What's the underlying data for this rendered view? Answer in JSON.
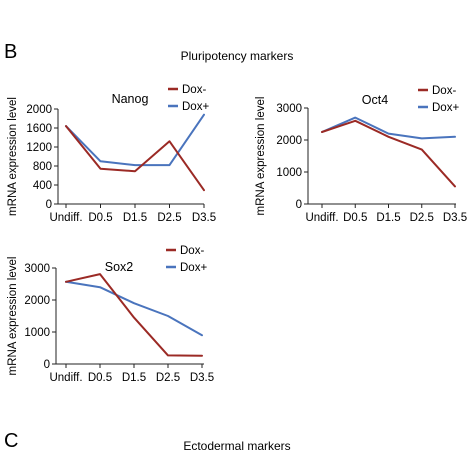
{
  "panel_b": {
    "letter": "B",
    "title": "Pluripotency markers"
  },
  "panel_c": {
    "letter": "C",
    "title": "Ectodermal markers"
  },
  "colors": {
    "dox_minus": "#9b2a25",
    "dox_plus": "#4a74bd",
    "axis": "#222222"
  },
  "chart_data": [
    {
      "type": "line",
      "title": "Nanog",
      "categories": [
        "Undiff.",
        "D0.5",
        "D1.5",
        "D2.5",
        "D3.5"
      ],
      "series": [
        {
          "name": "Dox-",
          "values": [
            1640,
            740,
            690,
            1320,
            290
          ]
        },
        {
          "name": "Dox+",
          "values": [
            1640,
            900,
            820,
            820,
            1880
          ]
        }
      ],
      "xlabel": "",
      "ylabel": "mRNA expression level",
      "ylim": [
        0,
        2000
      ],
      "yticks": [
        0,
        400,
        800,
        1200,
        1600,
        2000
      ],
      "legend": "top-right",
      "grid": false
    },
    {
      "type": "line",
      "title": "Oct4",
      "categories": [
        "Undiff.",
        "D0.5",
        "D1.5",
        "D2.5",
        "D3.5"
      ],
      "series": [
        {
          "name": "Dox-",
          "values": [
            2250,
            2600,
            2100,
            1700,
            550
          ]
        },
        {
          "name": "Dox+",
          "values": [
            2250,
            2700,
            2200,
            2050,
            2100
          ]
        }
      ],
      "xlabel": "",
      "ylabel": "mRNA expression level",
      "ylim": [
        0,
        3000
      ],
      "yticks": [
        0,
        1000,
        2000,
        3000
      ],
      "legend": "top-right",
      "grid": false
    },
    {
      "type": "line",
      "title": "Sox2",
      "categories": [
        "Undiff.",
        "D0.5",
        "D1.5",
        "D2.5",
        "D3.5"
      ],
      "series": [
        {
          "name": "Dox-",
          "values": [
            2570,
            2810,
            1450,
            270,
            260
          ]
        },
        {
          "name": "Dox+",
          "values": [
            2570,
            2400,
            1900,
            1500,
            900
          ]
        }
      ],
      "xlabel": "",
      "ylabel": "mRNA expression level",
      "ylim": [
        0,
        3000
      ],
      "yticks": [
        0,
        1000,
        2000,
        3000
      ],
      "legend": "top-right",
      "grid": false
    }
  ]
}
